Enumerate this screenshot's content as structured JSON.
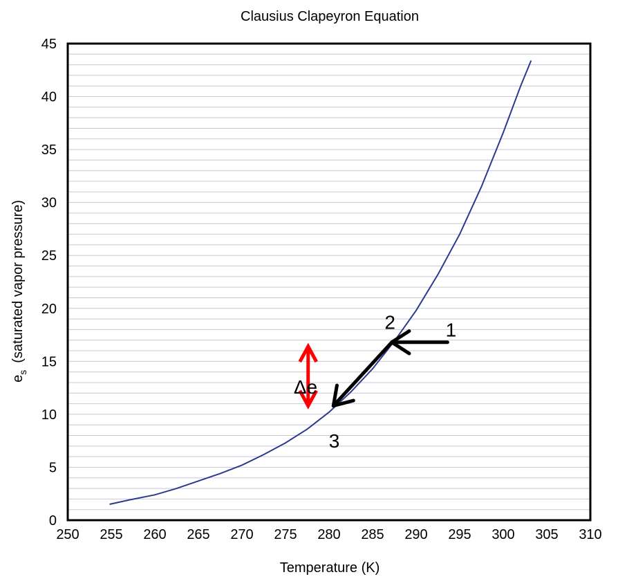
{
  "chart_data": {
    "type": "line",
    "title": "Clausius Clapeyron Equation",
    "xlabel": "Temperature (K)",
    "ylabel": {
      "main": "e",
      "subscript": "s",
      "rest": "(saturated vapor pressure)"
    },
    "xlim": [
      250,
      310
    ],
    "ylim": [
      0,
      45
    ],
    "x_ticks": [
      250,
      255,
      260,
      265,
      270,
      275,
      280,
      285,
      290,
      295,
      300,
      305,
      310
    ],
    "y_ticks": [
      0,
      5,
      10,
      15,
      20,
      25,
      30,
      35,
      40,
      45
    ],
    "grid": "horizontal",
    "series": [
      {
        "color": "#2b3a8f",
        "x": [
          254.8,
          257,
          260,
          262.5,
          265,
          267.5,
          270,
          272.5,
          275,
          277.5,
          280,
          282.5,
          285,
          287.5,
          290,
          292.5,
          295,
          297.5,
          300,
          302,
          303.2
        ],
        "y": [
          1.5,
          1.9,
          2.4,
          3.0,
          3.7,
          4.4,
          5.2,
          6.2,
          7.3,
          8.6,
          10.2,
          12.1,
          14.3,
          16.9,
          19.8,
          23.2,
          27.0,
          31.5,
          36.6,
          41.0,
          43.4
        ]
      }
    ],
    "annotations": {
      "point_1": {
        "label": "1",
        "x": 294.0,
        "y": 18.0
      },
      "point_2": {
        "label": "2",
        "x": 287.0,
        "y": 18.7
      },
      "point_3": {
        "label": "3",
        "x": 280.6,
        "y": 7.5
      },
      "delta_e": {
        "label": "Δe",
        "x": 277.3,
        "y": 12.6
      },
      "arrow_1_to_2": {
        "from": [
          293.6,
          16.8
        ],
        "to": [
          287.2,
          16.8
        ],
        "color": "#000000"
      },
      "arrow_2_to_3": {
        "from": [
          287.2,
          16.8
        ],
        "to": [
          280.5,
          10.8
        ],
        "color": "#000000"
      },
      "delta_arrow": {
        "x": 277.6,
        "from_y": 10.8,
        "to_y": 16.4,
        "color": "#ff0000"
      }
    },
    "colors": {
      "axis": "#000000",
      "gridline": "#c8c8d8",
      "curve": "#2b3a8f",
      "delta_arrow": "#ff0000",
      "process_arrow": "#000000"
    }
  }
}
